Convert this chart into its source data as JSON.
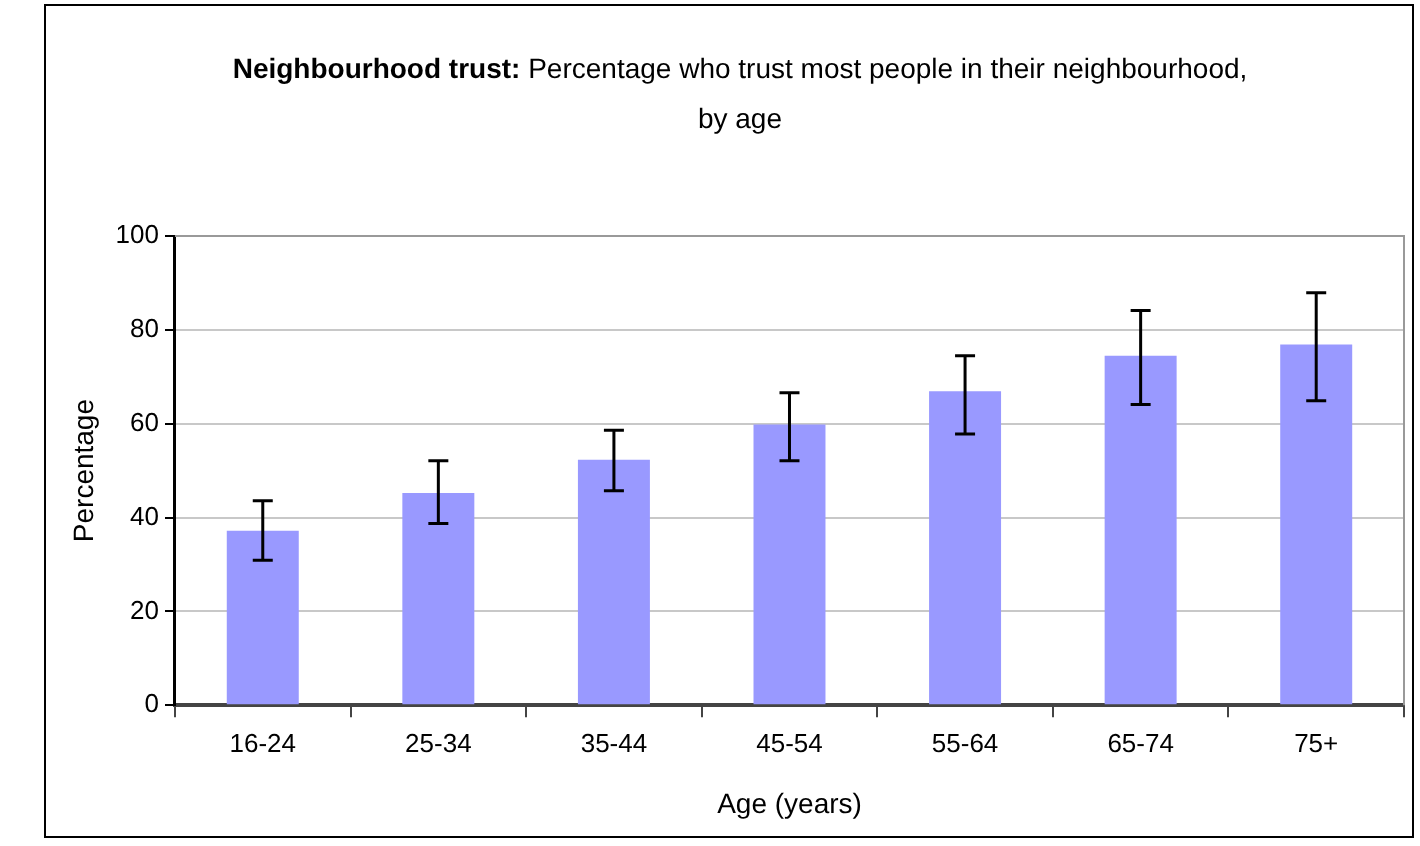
{
  "chart_data": {
    "type": "bar",
    "title": "Neighbourhood trust: Percentage who trust most people in their neighbourhood, by age",
    "xlabel": "Age (years)",
    "ylabel": "Percentage",
    "categories": [
      "16-24",
      "25-34",
      "35-44",
      "45-54",
      "55-64",
      "65-74",
      "75+"
    ],
    "values": [
      37.2,
      45.2,
      52.3,
      59.8,
      66.9,
      74.5,
      76.9
    ],
    "errors": [
      [
        30.9,
        43.6
      ],
      [
        38.7,
        52.1
      ],
      [
        45.7,
        58.6
      ],
      [
        52.1,
        66.6
      ],
      [
        57.8,
        74.5
      ],
      [
        64.1,
        84.1
      ],
      [
        64.9,
        87.9
      ]
    ],
    "color": "#9999ff",
    "ylim": [
      0,
      100
    ],
    "yticks": [
      0,
      20,
      40,
      60,
      80,
      100
    ],
    "grid": "y",
    "legend": false
  }
}
